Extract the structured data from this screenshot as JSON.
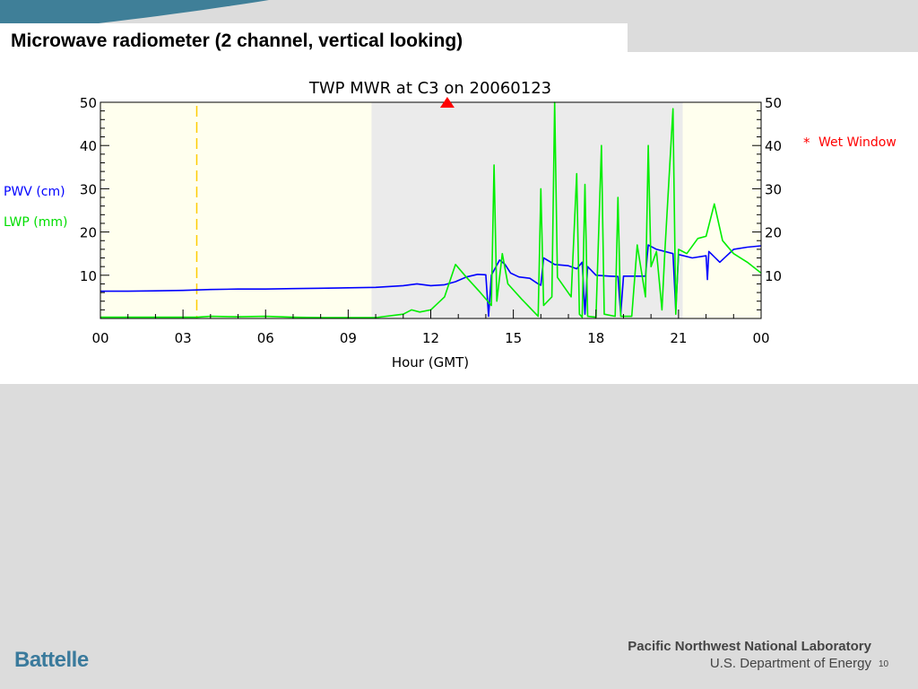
{
  "slide": {
    "title": "Microwave radiometer (2 channel, vertical looking)",
    "footer_left_logo": "Battelle",
    "footer_lab": "Pacific Northwest National Laboratory",
    "footer_dept": "U.S. Department of Energy",
    "slide_number": "10"
  },
  "chart_data": {
    "type": "line",
    "title": "TWP MWR at C3 on 20060123",
    "xlabel": "Hour (GMT)",
    "ylabel_series": [
      "PWV (cm)",
      "LWP (mm)"
    ],
    "xlim": [
      0,
      24
    ],
    "ylim": [
      0,
      50
    ],
    "x_ticks": [
      "00",
      "03",
      "06",
      "09",
      "12",
      "15",
      "18",
      "21",
      "00"
    ],
    "y_ticks": [
      "10",
      "20",
      "30",
      "40",
      "50"
    ],
    "legend": {
      "marker": "*",
      "label": "Wet Window",
      "placement": "top-right",
      "color": "#ff0000"
    },
    "colors": {
      "pwv": "#0000ff",
      "lwp": "#00ee00",
      "marker": "#ff0000",
      "dashed": "#ffcc00",
      "day_shade": "#ffffee",
      "night_shade": "#ebebeb"
    },
    "shaded_regions": [
      {
        "from": 0,
        "to": 9.85,
        "kind": "day"
      },
      {
        "from": 9.85,
        "to": 21.15,
        "kind": "night"
      },
      {
        "from": 21.15,
        "to": 24,
        "kind": "day"
      }
    ],
    "dashed_line_x": 3.5,
    "wet_window_marker_x": 12.6,
    "series": [
      {
        "name": "PWV (cm)",
        "color": "#0000ff",
        "points": [
          [
            0,
            6.3
          ],
          [
            1,
            6.3
          ],
          [
            2,
            6.4
          ],
          [
            3,
            6.5
          ],
          [
            4,
            6.7
          ],
          [
            5,
            6.8
          ],
          [
            6,
            6.8
          ],
          [
            7,
            6.9
          ],
          [
            8,
            7.0
          ],
          [
            9,
            7.1
          ],
          [
            10,
            7.2
          ],
          [
            11,
            7.6
          ],
          [
            11.5,
            8.0
          ],
          [
            12,
            7.6
          ],
          [
            12.5,
            7.8
          ],
          [
            12.9,
            8.5
          ],
          [
            13.3,
            9.6
          ],
          [
            13.7,
            10.2
          ],
          [
            14.0,
            10.1
          ],
          [
            14.1,
            0.5
          ],
          [
            14.2,
            10.0
          ],
          [
            14.5,
            13.5
          ],
          [
            14.7,
            12.5
          ],
          [
            14.9,
            10.5
          ],
          [
            15.2,
            9.6
          ],
          [
            15.6,
            9.3
          ],
          [
            15.9,
            8.0
          ],
          [
            16.0,
            7.7
          ],
          [
            16.1,
            14.0
          ],
          [
            16.5,
            12.5
          ],
          [
            17.0,
            12.2
          ],
          [
            17.3,
            11.5
          ],
          [
            17.5,
            13.0
          ],
          [
            17.6,
            1.0
          ],
          [
            17.7,
            12.0
          ],
          [
            18.0,
            10.0
          ],
          [
            18.5,
            9.8
          ],
          [
            18.8,
            9.7
          ],
          [
            18.9,
            1.0
          ],
          [
            19.0,
            9.8
          ],
          [
            19.2,
            9.8
          ],
          [
            19.8,
            9.8
          ],
          [
            19.9,
            17.0
          ],
          [
            20.2,
            16.0
          ],
          [
            20.8,
            15.0
          ],
          [
            20.9,
            2.0
          ],
          [
            21.0,
            14.8
          ],
          [
            21.5,
            14.0
          ],
          [
            22.0,
            14.5
          ],
          [
            22.05,
            9.0
          ],
          [
            22.1,
            15.5
          ],
          [
            22.5,
            13.0
          ],
          [
            23.0,
            16.0
          ],
          [
            23.5,
            16.5
          ],
          [
            24,
            16.8
          ]
        ]
      },
      {
        "name": "LWP (mm)",
        "color": "#00ee00",
        "points": [
          [
            0,
            0.3
          ],
          [
            3.5,
            0.3
          ],
          [
            4,
            0.5
          ],
          [
            5,
            0.4
          ],
          [
            6,
            0.5
          ],
          [
            7,
            0.3
          ],
          [
            8,
            0.2
          ],
          [
            9,
            0.2
          ],
          [
            10,
            0.2
          ],
          [
            11,
            1.0
          ],
          [
            11.3,
            2.0
          ],
          [
            11.6,
            1.5
          ],
          [
            12,
            2.0
          ],
          [
            12.5,
            5.0
          ],
          [
            12.9,
            12.5
          ],
          [
            13.3,
            9.5
          ],
          [
            13.8,
            6.0
          ],
          [
            14.2,
            3.0
          ],
          [
            14.3,
            35.5
          ],
          [
            14.4,
            4.0
          ],
          [
            14.6,
            15.0
          ],
          [
            14.8,
            8.0
          ],
          [
            15.3,
            4.5
          ],
          [
            15.9,
            0.5
          ],
          [
            16.0,
            30.0
          ],
          [
            16.1,
            3.0
          ],
          [
            16.4,
            5.0
          ],
          [
            16.5,
            50.0
          ],
          [
            16.6,
            9.5
          ],
          [
            17.1,
            5.0
          ],
          [
            17.3,
            33.5
          ],
          [
            17.4,
            1.0
          ],
          [
            17.5,
            0.3
          ],
          [
            17.6,
            31.0
          ],
          [
            17.7,
            0.5
          ],
          [
            18.0,
            0.3
          ],
          [
            18.2,
            40.0
          ],
          [
            18.3,
            1.0
          ],
          [
            18.7,
            0.5
          ],
          [
            18.8,
            28.0
          ],
          [
            18.9,
            0.5
          ],
          [
            19.3,
            0.5
          ],
          [
            19.5,
            17.0
          ],
          [
            19.8,
            5.0
          ],
          [
            19.9,
            40.0
          ],
          [
            20.0,
            12.0
          ],
          [
            20.2,
            15.5
          ],
          [
            20.4,
            2.0
          ],
          [
            20.5,
            15.0
          ],
          [
            20.8,
            48.5
          ],
          [
            20.9,
            1.0
          ],
          [
            21.0,
            16.0
          ],
          [
            21.3,
            15.0
          ],
          [
            21.7,
            18.5
          ],
          [
            22.0,
            19.0
          ],
          [
            22.3,
            26.5
          ],
          [
            22.6,
            18.0
          ],
          [
            23.0,
            15.0
          ],
          [
            23.5,
            13.0
          ],
          [
            24,
            10.5
          ]
        ]
      }
    ]
  }
}
